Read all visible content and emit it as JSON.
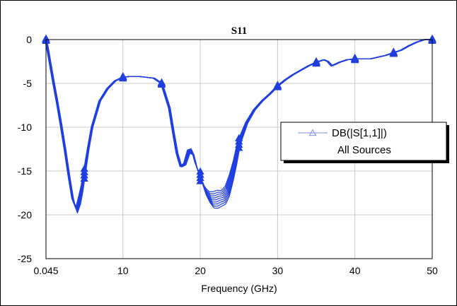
{
  "chart_data": {
    "type": "line",
    "title": "S11",
    "xlabel": "Frequency (GHz)",
    "ylabel": "",
    "xlim": [
      0.045,
      50
    ],
    "ylim": [
      -25,
      0
    ],
    "x_ticks": [
      0.045,
      10,
      20,
      30,
      40,
      50
    ],
    "x_tick_labels": [
      "0.045",
      "10",
      "20",
      "30",
      "40",
      "50"
    ],
    "y_ticks": [
      0,
      -5,
      -10,
      -15,
      -20,
      -25
    ],
    "y_tick_labels": [
      "0",
      "-5",
      "-10",
      "-15",
      "-20",
      "-25"
    ],
    "grid": true,
    "legend": {
      "placement": "right",
      "entries": [
        {
          "label": "DB(|S[1,1]|)",
          "sublabel": "All Sources",
          "marker": "triangle"
        }
      ]
    },
    "series_color": "#1f3fe0",
    "marker_x": [
      0.045,
      5,
      10,
      15,
      20,
      25,
      30,
      35,
      40,
      45,
      50
    ],
    "series": [
      {
        "name": "DB(|S[1,1]|)",
        "x": [
          0.045,
          0.5,
          1,
          1.5,
          2,
          2.5,
          3,
          3.5,
          4,
          4.4,
          4.7,
          5,
          5.5,
          6,
          7,
          8,
          9,
          10,
          11,
          12,
          13,
          14,
          15,
          16,
          16.5,
          17,
          17.5,
          18,
          18.5,
          19,
          19.5,
          20,
          20.5,
          21,
          21.5,
          22,
          22.5,
          23,
          23.5,
          24,
          24.5,
          25,
          26,
          27,
          28,
          29,
          30,
          31,
          32,
          33,
          34,
          35,
          36,
          36.5,
          37,
          37.5,
          38,
          39,
          40,
          41,
          42,
          43,
          44,
          45,
          46,
          47,
          48,
          49,
          50
        ],
        "values": [
          0,
          -2.3,
          -4.8,
          -7.2,
          -9.8,
          -12.5,
          -15.5,
          -18.2,
          -19.5,
          -18.3,
          -17,
          -15.3,
          -12.5,
          -10,
          -7,
          -5.6,
          -4.7,
          -4.3,
          -4.2,
          -4.2,
          -4.3,
          -4.4,
          -5,
          -7.8,
          -10.5,
          -13,
          -14.5,
          -14.2,
          -12.8,
          -12.8,
          -14.5,
          -15.6,
          -17,
          -17.8,
          -18.3,
          -18.3,
          -18.1,
          -18,
          -17.3,
          -15.8,
          -14,
          -11.8,
          -9.5,
          -8,
          -7,
          -6.2,
          -5.3,
          -4.6,
          -4,
          -3.5,
          -3,
          -2.6,
          -2.3,
          -2.5,
          -3,
          -2.8,
          -2.6,
          -2.3,
          -2.2,
          -2.2,
          -2.2,
          -2,
          -1.8,
          -1.5,
          -1.2,
          -0.7,
          -0.3,
          0,
          0
        ]
      }
    ]
  }
}
